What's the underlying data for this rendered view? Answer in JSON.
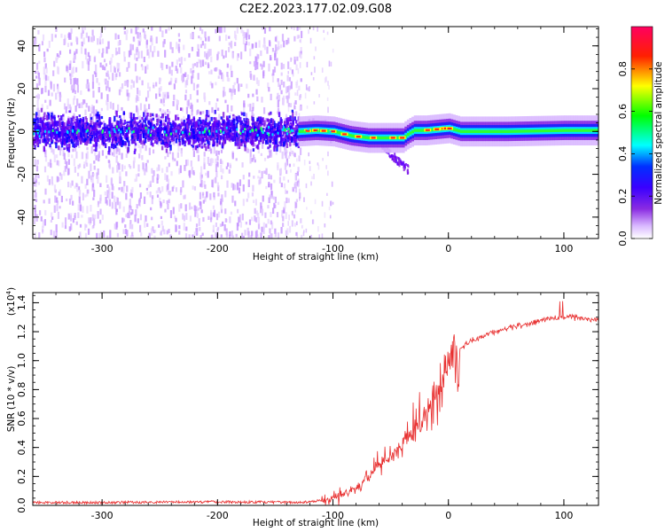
{
  "title": "C2E2.2023.177.02.09.G08",
  "chart_data": [
    {
      "type": "heatmap",
      "name": "spectrogram",
      "xlabel": "Height of straight line (km)",
      "ylabel": "Frequency (Hz)",
      "xlim": [
        -360,
        130
      ],
      "ylim": [
        -50,
        49
      ],
      "x_ticks": [
        -300,
        -200,
        -100,
        0,
        100
      ],
      "x_tick_labels": [
        "-300",
        "-200",
        "-100",
        "0",
        "100"
      ],
      "y_ticks": [
        -40,
        -20,
        0,
        20,
        40
      ],
      "y_tick_labels": [
        "-40",
        "-20",
        "0",
        "20",
        "40"
      ],
      "ridge": {
        "description_points_x": [
          -360,
          -130,
          -115,
          -100,
          -85,
          -70,
          -55,
          -40,
          -35,
          -30,
          -20,
          -10,
          0,
          10,
          50,
          100,
          130
        ],
        "frequency_hz": [
          0,
          0,
          0.5,
          0,
          -2,
          -3,
          -3,
          -3,
          -1,
          0.5,
          0.5,
          1,
          1.5,
          0,
          0,
          0.5,
          0.5
        ]
      },
      "colorbar": {
        "label": "Normalized spectral amplitude",
        "range": [
          0,
          1
        ],
        "ticks": [
          0.0,
          0.2,
          0.4,
          0.6,
          0.8
        ],
        "tick_labels": [
          "0.0",
          "0.2",
          "0.4",
          "0.6",
          "0.8"
        ],
        "colors": [
          "#ffffff",
          "#d9b8ff",
          "#8a2be2",
          "#5a00ff",
          "#0000ff",
          "#00ffff",
          "#00ff00",
          "#ffff00",
          "#ff0000",
          "#ff0060"
        ]
      }
    },
    {
      "type": "line",
      "name": "snr",
      "xlabel": "Height of straight line (km)",
      "ylabel": "SNR (10 * v/v)",
      "scale_label": "(x10",
      "scale_exponent": "4",
      "xlim": [
        -360,
        130
      ],
      "ylim": [
        0,
        1.47
      ],
      "x_ticks": [
        -300,
        -200,
        -100,
        0,
        100
      ],
      "x_tick_labels": [
        "-300",
        "-200",
        "-100",
        "0",
        "100"
      ],
      "y_ticks": [
        0.0,
        0.2,
        0.4,
        0.6,
        0.8,
        1.0,
        1.2,
        1.4
      ],
      "y_tick_labels": [
        "0.0",
        "0.2",
        "0.4",
        "0.6",
        "0.8",
        "1.0",
        "1.2",
        "1.4"
      ],
      "color": "#e83030",
      "series": [
        {
          "name": "SNR",
          "x": [
            -360,
            -300,
            -200,
            -130,
            -115,
            -100,
            -90,
            -80,
            -70,
            -60,
            -50,
            -40,
            -30,
            -20,
            -10,
            0,
            10,
            20,
            30,
            40,
            50,
            60,
            70,
            80,
            90,
            100,
            110,
            120,
            130
          ],
          "values": [
            0.02,
            0.02,
            0.025,
            0.02,
            0.03,
            0.05,
            0.08,
            0.12,
            0.2,
            0.28,
            0.35,
            0.42,
            0.5,
            0.62,
            0.78,
            0.95,
            1.08,
            1.14,
            1.17,
            1.2,
            1.22,
            1.24,
            1.26,
            1.28,
            1.29,
            1.3,
            1.3,
            1.29,
            1.28
          ]
        }
      ]
    }
  ]
}
